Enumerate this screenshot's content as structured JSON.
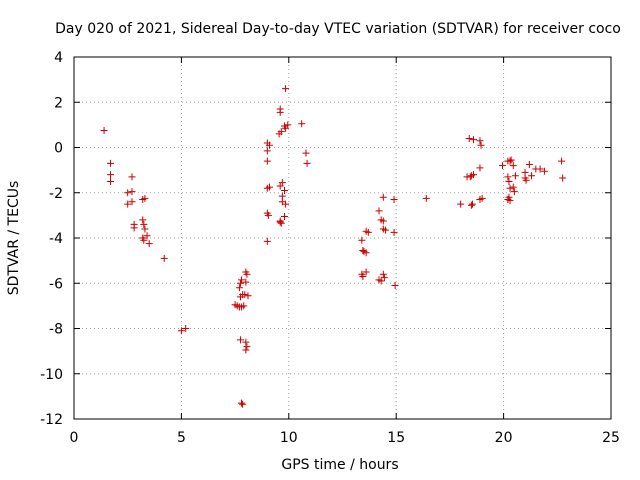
{
  "chart_data": {
    "type": "scatter",
    "title": "Day 020 of 2021, Sidereal Day-to-day VTEC variation (SDTVAR) for receiver coco",
    "xlabel": "GPS time / hours",
    "ylabel": "SDTVAR / TECUs",
    "xlim": [
      0,
      25
    ],
    "ylim": [
      -12,
      4
    ],
    "xticks": [
      0,
      5,
      10,
      15,
      20,
      25
    ],
    "yticks": [
      -12,
      -10,
      -8,
      -6,
      -4,
      -2,
      0,
      2,
      4
    ],
    "grid": true,
    "marker": "+",
    "color": "#cc0000",
    "series": [
      {
        "name": "SDTVAR",
        "points": [
          [
            1.4,
            0.75
          ],
          [
            1.7,
            -0.7
          ],
          [
            1.7,
            -1.2
          ],
          [
            1.7,
            -1.5
          ],
          [
            2.5,
            -2.0
          ],
          [
            2.5,
            -2.5
          ],
          [
            2.7,
            -1.3
          ],
          [
            2.7,
            -1.95
          ],
          [
            2.7,
            -2.4
          ],
          [
            2.8,
            -3.4
          ],
          [
            2.8,
            -3.55
          ],
          [
            3.2,
            -2.3
          ],
          [
            3.3,
            -2.25
          ],
          [
            3.2,
            -3.2
          ],
          [
            3.25,
            -3.4
          ],
          [
            3.3,
            -3.6
          ],
          [
            3.2,
            -4.0
          ],
          [
            3.25,
            -4.1
          ],
          [
            3.4,
            -3.9
          ],
          [
            3.5,
            -4.25
          ],
          [
            4.2,
            -4.9
          ],
          [
            5.0,
            -8.1
          ],
          [
            5.2,
            -8.0
          ],
          [
            7.5,
            -6.95
          ],
          [
            7.6,
            -7.0
          ],
          [
            7.7,
            -7.05
          ],
          [
            7.75,
            -6.0
          ],
          [
            7.8,
            -5.85
          ],
          [
            7.7,
            -6.2
          ],
          [
            7.85,
            -6.5
          ],
          [
            7.75,
            -6.6
          ],
          [
            7.8,
            -7.05
          ],
          [
            7.9,
            -7.0
          ],
          [
            7.75,
            -8.5
          ],
          [
            8.0,
            -8.6
          ],
          [
            8.05,
            -8.8
          ],
          [
            8.0,
            -8.95
          ],
          [
            7.8,
            -11.3
          ],
          [
            7.85,
            -11.35
          ],
          [
            8.0,
            -5.5
          ],
          [
            8.05,
            -5.6
          ],
          [
            8.0,
            -5.95
          ],
          [
            7.95,
            -6.5
          ],
          [
            8.1,
            -6.55
          ],
          [
            9.0,
            0.2
          ],
          [
            9.1,
            0.1
          ],
          [
            9.0,
            -0.15
          ],
          [
            9.0,
            -0.6
          ],
          [
            9.0,
            -1.8
          ],
          [
            9.1,
            -1.75
          ],
          [
            9.0,
            -2.9
          ],
          [
            9.05,
            -3.0
          ],
          [
            9.0,
            -4.15
          ],
          [
            9.6,
            1.7
          ],
          [
            9.6,
            1.55
          ],
          [
            9.55,
            0.6
          ],
          [
            9.65,
            0.7
          ],
          [
            9.7,
            -1.55
          ],
          [
            9.6,
            -1.7
          ],
          [
            9.8,
            -1.9
          ],
          [
            9.7,
            -2.15
          ],
          [
            9.7,
            -2.4
          ],
          [
            9.85,
            -2.5
          ],
          [
            9.6,
            -3.25
          ],
          [
            9.65,
            -3.35
          ],
          [
            9.8,
            -3.05
          ],
          [
            9.6,
            -3.3
          ],
          [
            9.85,
            2.6
          ],
          [
            9.8,
            0.95
          ],
          [
            9.85,
            0.85
          ],
          [
            9.95,
            1.0
          ],
          [
            10.6,
            1.05
          ],
          [
            10.8,
            -0.25
          ],
          [
            10.85,
            -0.7
          ],
          [
            13.4,
            -4.1
          ],
          [
            13.45,
            -4.55
          ],
          [
            13.5,
            -4.6
          ],
          [
            13.6,
            -4.65
          ],
          [
            13.4,
            -5.6
          ],
          [
            13.45,
            -5.7
          ],
          [
            13.6,
            -5.5
          ],
          [
            13.6,
            -3.7
          ],
          [
            13.7,
            -3.75
          ],
          [
            14.2,
            -2.8
          ],
          [
            14.3,
            -3.2
          ],
          [
            14.4,
            -3.25
          ],
          [
            14.4,
            -3.6
          ],
          [
            14.5,
            -3.65
          ],
          [
            14.2,
            -5.85
          ],
          [
            14.3,
            -5.9
          ],
          [
            14.4,
            -5.6
          ],
          [
            14.45,
            -5.75
          ],
          [
            14.4,
            -2.2
          ],
          [
            14.9,
            -2.3
          ],
          [
            14.9,
            -3.75
          ],
          [
            14.95,
            -6.1
          ],
          [
            16.4,
            -2.25
          ],
          [
            18.0,
            -2.5
          ],
          [
            18.3,
            -1.3
          ],
          [
            18.45,
            -1.3
          ],
          [
            18.5,
            -1.25
          ],
          [
            18.6,
            -1.2
          ],
          [
            18.5,
            -2.55
          ],
          [
            18.55,
            -2.5
          ],
          [
            18.4,
            0.4
          ],
          [
            18.6,
            0.35
          ],
          [
            18.9,
            0.3
          ],
          [
            18.95,
            0.1
          ],
          [
            18.9,
            -0.9
          ],
          [
            18.9,
            -2.3
          ],
          [
            19.0,
            -2.25
          ],
          [
            19.95,
            -0.8
          ],
          [
            20.2,
            -0.6
          ],
          [
            20.3,
            -0.6
          ],
          [
            20.35,
            -0.55
          ],
          [
            20.45,
            -0.8
          ],
          [
            20.2,
            -1.3
          ],
          [
            20.25,
            -1.5
          ],
          [
            20.3,
            -1.8
          ],
          [
            20.45,
            -1.75
          ],
          [
            20.55,
            -1.25
          ],
          [
            20.2,
            -2.3
          ],
          [
            20.25,
            -2.2
          ],
          [
            20.3,
            -2.35
          ],
          [
            20.5,
            -1.95
          ],
          [
            21.0,
            -1.1
          ],
          [
            21.0,
            -1.35
          ],
          [
            21.05,
            -1.45
          ],
          [
            21.2,
            -0.75
          ],
          [
            21.3,
            -1.25
          ],
          [
            21.5,
            -0.95
          ],
          [
            21.7,
            -0.95
          ],
          [
            21.9,
            -1.05
          ],
          [
            22.7,
            -0.6
          ],
          [
            22.75,
            -1.35
          ]
        ]
      }
    ]
  }
}
